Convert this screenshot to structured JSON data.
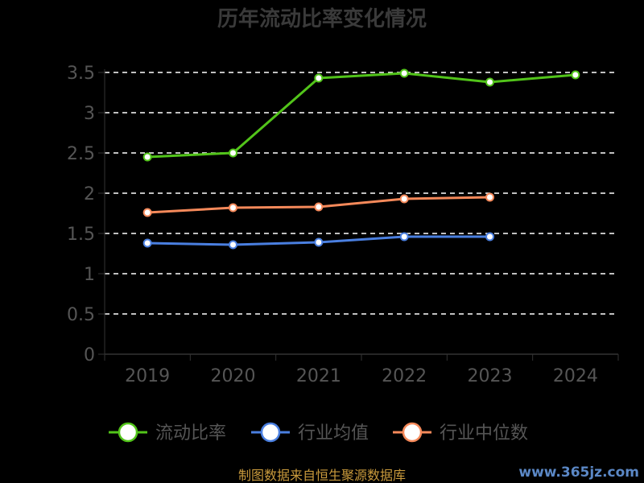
{
  "chart_data": {
    "type": "line",
    "title": "历年流动比率变化情况",
    "categories": [
      "2019",
      "2020",
      "2021",
      "2022",
      "2023",
      "2024"
    ],
    "ylim": [
      0,
      3.5
    ],
    "yticks": [
      "0",
      "0.5",
      "1",
      "1.5",
      "2",
      "2.5",
      "3",
      "3.5"
    ],
    "grid": true,
    "legend_position": "bottom",
    "series": [
      {
        "name": "流动比率",
        "color": "#52c41a",
        "values": [
          2.45,
          2.5,
          3.43,
          3.49,
          3.38,
          3.47
        ]
      },
      {
        "name": "行业均值",
        "color": "#4a7fe0",
        "values": [
          1.38,
          1.36,
          1.39,
          1.46,
          1.46,
          null
        ]
      },
      {
        "name": "行业中位数",
        "color": "#f5895a",
        "values": [
          1.76,
          1.82,
          1.83,
          1.93,
          1.95,
          null
        ]
      }
    ]
  },
  "footer": {
    "source": "制图数据来自恒生聚源数据库",
    "watermark": "www.365jz.com"
  }
}
